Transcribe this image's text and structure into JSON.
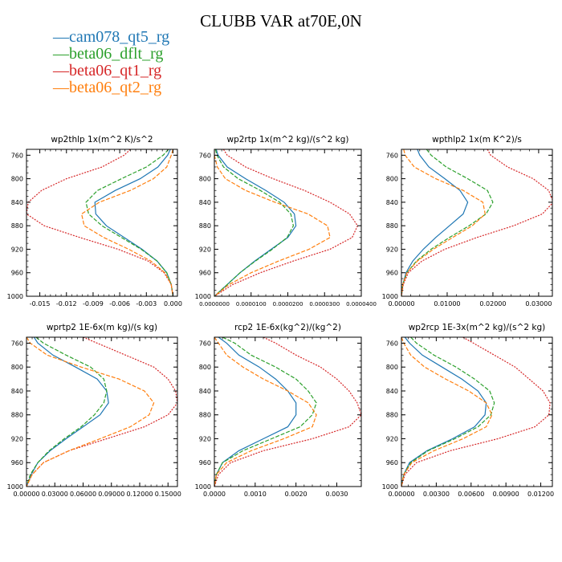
{
  "figure": {
    "title": "CLUBB VAR at70E,0N"
  },
  "legend": [
    {
      "label": "cam078_qt5_rg",
      "color": "#1f77b4"
    },
    {
      "label": "beta06_dflt_rg",
      "color": "#2ca02c"
    },
    {
      "label": "beta06_qt1_rg",
      "color": "#d62728"
    },
    {
      "label": "beta06_qt2_rg",
      "color": "#ff7f0e"
    }
  ],
  "chart_data": [
    {
      "type": "line",
      "title": "wp2thlp   1x(m^2 K)/s^2",
      "xlim": [
        -0.0165,
        0.0005
      ],
      "xticks": [
        -0.015,
        -0.012,
        -0.009,
        -0.006,
        -0.003,
        0.0
      ],
      "xtick_labels": [
        "-0.015",
        "-0.012",
        "-0.009",
        "-0.006",
        "-0.003",
        "0.000"
      ],
      "ylim": [
        1000,
        750
      ],
      "yticks": [
        760,
        800,
        840,
        880,
        920,
        960,
        1000
      ],
      "ytick_labels": [
        "760",
        "800",
        "840",
        "880",
        "920",
        "960",
        "1000"
      ],
      "y": [
        750,
        760,
        780,
        800,
        820,
        840,
        860,
        880,
        900,
        920,
        940,
        960,
        980,
        1000
      ],
      "series": [
        {
          "name": "cam078_qt5_rg",
          "values": [
            -0.0003,
            -0.0006,
            -0.0017,
            -0.0037,
            -0.0065,
            -0.0088,
            -0.0087,
            -0.0075,
            -0.0055,
            -0.0035,
            -0.0018,
            -0.0007,
            -0.0002,
            0.0
          ]
        },
        {
          "name": "beta06_dflt_rg",
          "values": [
            -0.0005,
            -0.0011,
            -0.003,
            -0.0058,
            -0.0085,
            -0.0098,
            -0.0095,
            -0.008,
            -0.0058,
            -0.0036,
            -0.0018,
            -0.0007,
            -0.0002,
            0.0
          ]
        },
        {
          "name": "beta06_qt1_rg",
          "values": [
            -0.0048,
            -0.0055,
            -0.008,
            -0.012,
            -0.0148,
            -0.0163,
            -0.0165,
            -0.0145,
            -0.0105,
            -0.0062,
            -0.0028,
            -0.001,
            -0.0002,
            0.0
          ]
        },
        {
          "name": "beta06_qt2_rg",
          "values": [
            0.0,
            -0.0002,
            -0.0007,
            -0.0022,
            -0.0048,
            -0.0083,
            -0.0103,
            -0.01,
            -0.0078,
            -0.005,
            -0.0025,
            -0.0009,
            -0.0002,
            0.0
          ]
        }
      ]
    },
    {
      "type": "line",
      "title": "wp2rtp   1x(m^2 kg)/(s^2 kg)",
      "xlim": [
        0,
        4e-05
      ],
      "xticks": [
        0,
        1e-05,
        2e-05,
        3e-05,
        4e-05
      ],
      "xtick_labels": [
        "0.0000000",
        "0.0000100",
        "0.0000200",
        "0.0000300",
        "0.0000400"
      ],
      "ylim": [
        1000,
        750
      ],
      "yticks": [
        760,
        800,
        840,
        880,
        920,
        960,
        1000
      ],
      "ytick_labels": [
        "760",
        "800",
        "840",
        "880",
        "920",
        "960",
        "1000"
      ],
      "y": [
        750,
        760,
        780,
        800,
        820,
        840,
        860,
        880,
        900,
        920,
        940,
        960,
        980,
        1000
      ],
      "series": [
        {
          "name": "cam078_qt5_rg",
          "values": [
            5e-07,
            1e-06,
            3.5e-06,
            8.5e-06,
            1.4e-05,
            1.9e-05,
            2.18e-05,
            2.22e-05,
            2e-05,
            1.55e-05,
            1.1e-05,
            7e-06,
            3.5e-06,
            0.0
          ]
        },
        {
          "name": "beta06_dflt_rg",
          "values": [
            3e-07,
            7e-07,
            2.5e-06,
            6.5e-06,
            1.25e-05,
            1.78e-05,
            2.08e-05,
            2.15e-05,
            1.98e-05,
            1.58e-05,
            1.12e-05,
            7e-06,
            3.5e-06,
            0.0
          ]
        },
        {
          "name": "beta06_qt1_rg",
          "values": [
            2.5e-06,
            3.5e-06,
            8.5e-06,
            1.6e-05,
            2.45e-05,
            3.15e-05,
            3.68e-05,
            3.9e-05,
            3.75e-05,
            3.15e-05,
            2.15e-05,
            1.25e-05,
            5e-06,
            0.0
          ]
        },
        {
          "name": "beta06_qt2_rg",
          "values": [
            0.0,
            0.0,
            8e-07,
            3e-06,
            8.5e-06,
            1.65e-05,
            2.55e-05,
            3.08e-05,
            3.15e-05,
            2.58e-05,
            1.75e-05,
            1e-05,
            4e-06,
            0.0
          ]
        }
      ]
    },
    {
      "type": "line",
      "title": "wpthlp2   1x(m K^2)/s",
      "xlim": [
        0,
        0.033
      ],
      "xticks": [
        0,
        0.01,
        0.02,
        0.03
      ],
      "xtick_labels": [
        "0.00000",
        "0.01000",
        "0.02000",
        "0.03000"
      ],
      "ylim": [
        1000,
        750
      ],
      "yticks": [
        760,
        800,
        840,
        880,
        920,
        960,
        1000
      ],
      "ytick_labels": [
        "760",
        "800",
        "840",
        "880",
        "920",
        "960",
        "1000"
      ],
      "y": [
        750,
        760,
        780,
        800,
        820,
        840,
        860,
        880,
        900,
        920,
        940,
        960,
        980,
        1000
      ],
      "series": [
        {
          "name": "cam078_qt5_rg",
          "values": [
            0.0035,
            0.004,
            0.006,
            0.0095,
            0.0128,
            0.0145,
            0.0135,
            0.0105,
            0.0075,
            0.0048,
            0.0025,
            0.001,
            0.0003,
            0.0
          ]
        },
        {
          "name": "beta06_dflt_rg",
          "values": [
            0.0055,
            0.0065,
            0.0098,
            0.0145,
            0.0188,
            0.02,
            0.0185,
            0.0148,
            0.0105,
            0.0065,
            0.0033,
            0.0012,
            0.0003,
            0.0
          ]
        },
        {
          "name": "beta06_qt1_rg",
          "values": [
            0.0188,
            0.0195,
            0.0232,
            0.0288,
            0.0322,
            0.0332,
            0.0308,
            0.0245,
            0.0165,
            0.0095,
            0.0045,
            0.0015,
            0.0004,
            0.0
          ]
        },
        {
          "name": "beta06_qt2_rg",
          "values": [
            0.0005,
            0.0008,
            0.0028,
            0.0075,
            0.0135,
            0.0178,
            0.0183,
            0.0155,
            0.0112,
            0.007,
            0.0035,
            0.0012,
            0.0003,
            0.0
          ]
        }
      ]
    },
    {
      "type": "line",
      "title": "wprtp2   1E-6x(m kg)/(s kg)",
      "xlim": [
        0,
        0.16
      ],
      "xticks": [
        0,
        0.03,
        0.06,
        0.09,
        0.12,
        0.15
      ],
      "xtick_labels": [
        "0.00000",
        "0.03000",
        "0.06000",
        "0.09000",
        "0.12000",
        "0.15000"
      ],
      "ylim": [
        1000,
        750
      ],
      "yticks": [
        760,
        800,
        840,
        880,
        920,
        960,
        1000
      ],
      "ytick_labels": [
        "760",
        "800",
        "840",
        "880",
        "920",
        "960",
        "1000"
      ],
      "y": [
        750,
        760,
        780,
        800,
        820,
        840,
        860,
        880,
        900,
        920,
        940,
        960,
        980,
        1000
      ],
      "series": [
        {
          "name": "cam078_qt5_rg",
          "values": [
            0.008,
            0.012,
            0.028,
            0.052,
            0.075,
            0.085,
            0.087,
            0.078,
            0.06,
            0.042,
            0.025,
            0.012,
            0.005,
            0.0
          ]
        },
        {
          "name": "beta06_dflt_rg",
          "values": [
            0.01,
            0.018,
            0.042,
            0.068,
            0.082,
            0.085,
            0.082,
            0.072,
            0.058,
            0.04,
            0.024,
            0.012,
            0.004,
            0.0
          ]
        },
        {
          "name": "beta06_qt1_rg",
          "values": [
            0.06,
            0.075,
            0.105,
            0.135,
            0.15,
            0.158,
            0.16,
            0.15,
            0.125,
            0.085,
            0.045,
            0.018,
            0.006,
            0.0
          ]
        },
        {
          "name": "beta06_qt2_rg",
          "values": [
            0.0,
            0.004,
            0.022,
            0.058,
            0.098,
            0.125,
            0.135,
            0.13,
            0.11,
            0.078,
            0.045,
            0.018,
            0.006,
            0.0
          ]
        }
      ]
    },
    {
      "type": "line",
      "title": "rcp2   1E-6x(kg^2)/(kg^2)",
      "xlim": [
        0,
        0.0036
      ],
      "xticks": [
        0,
        0.001,
        0.002,
        0.003
      ],
      "xtick_labels": [
        "0.0000",
        "0.0010",
        "0.0020",
        "0.0030"
      ],
      "ylim": [
        1000,
        750
      ],
      "yticks": [
        760,
        800,
        840,
        880,
        920,
        960,
        1000
      ],
      "ytick_labels": [
        "760",
        "800",
        "840",
        "880",
        "920",
        "960",
        "1000"
      ],
      "y": [
        750,
        760,
        780,
        800,
        820,
        840,
        860,
        880,
        900,
        920,
        940,
        960,
        980,
        1000
      ],
      "series": [
        {
          "name": "cam078_qt5_rg",
          "values": [
            0.0001,
            0.0003,
            0.0006,
            0.0011,
            0.0015,
            0.0018,
            0.002,
            0.002,
            0.0018,
            0.0012,
            0.0006,
            0.0002,
            5e-05,
            0.0
          ]
        },
        {
          "name": "beta06_dflt_rg",
          "values": [
            0.0002,
            0.0005,
            0.0009,
            0.0015,
            0.002,
            0.0023,
            0.0025,
            0.0024,
            0.0021,
            0.0014,
            0.0007,
            0.0002,
            5e-05,
            0.0
          ]
        },
        {
          "name": "beta06_qt1_rg",
          "values": [
            0.0012,
            0.0015,
            0.002,
            0.0026,
            0.003,
            0.0033,
            0.0035,
            0.0036,
            0.0033,
            0.0024,
            0.0012,
            0.0004,
            0.0001,
            0.0
          ]
        },
        {
          "name": "beta06_qt2_rg",
          "values": [
            0.0,
            0.0001,
            0.0003,
            0.0007,
            0.0012,
            0.0018,
            0.0023,
            0.0025,
            0.0024,
            0.0017,
            0.0009,
            0.0003,
            5e-05,
            0.0
          ]
        }
      ]
    },
    {
      "type": "line",
      "title": "wp2rcp   1E-3x(m^2 kg)/(s^2 kg)",
      "xlim": [
        0,
        0.013
      ],
      "xticks": [
        0,
        0.003,
        0.006,
        0.009,
        0.012
      ],
      "xtick_labels": [
        "0.00000",
        "0.00300",
        "0.00600",
        "0.00900",
        "0.01200"
      ],
      "ylim": [
        1000,
        750
      ],
      "yticks": [
        760,
        800,
        840,
        880,
        920,
        960,
        1000
      ],
      "ytick_labels": [
        "760",
        "800",
        "840",
        "880",
        "920",
        "960",
        "1000"
      ],
      "y": [
        750,
        760,
        780,
        800,
        820,
        840,
        860,
        880,
        900,
        920,
        940,
        960,
        980,
        1000
      ],
      "series": [
        {
          "name": "cam078_qt5_rg",
          "values": [
            0.0003,
            0.0007,
            0.0018,
            0.0035,
            0.0052,
            0.0066,
            0.0073,
            0.0072,
            0.0063,
            0.0044,
            0.0022,
            0.0007,
            0.0002,
            0.0
          ]
        },
        {
          "name": "beta06_dflt_rg",
          "values": [
            0.0008,
            0.0013,
            0.0028,
            0.0047,
            0.0063,
            0.0076,
            0.008,
            0.0077,
            0.0066,
            0.0046,
            0.0023,
            0.0008,
            0.0002,
            0.0
          ]
        },
        {
          "name": "beta06_qt1_rg",
          "values": [
            0.0053,
            0.0062,
            0.008,
            0.0098,
            0.011,
            0.0122,
            0.0128,
            0.0127,
            0.0115,
            0.0083,
            0.0042,
            0.0013,
            0.0003,
            0.0
          ]
        },
        {
          "name": "beta06_qt2_rg",
          "values": [
            0.0,
            0.0002,
            0.0008,
            0.002,
            0.0038,
            0.0058,
            0.0073,
            0.0078,
            0.0073,
            0.0053,
            0.0028,
            0.0009,
            0.0002,
            0.0
          ]
        }
      ]
    }
  ]
}
